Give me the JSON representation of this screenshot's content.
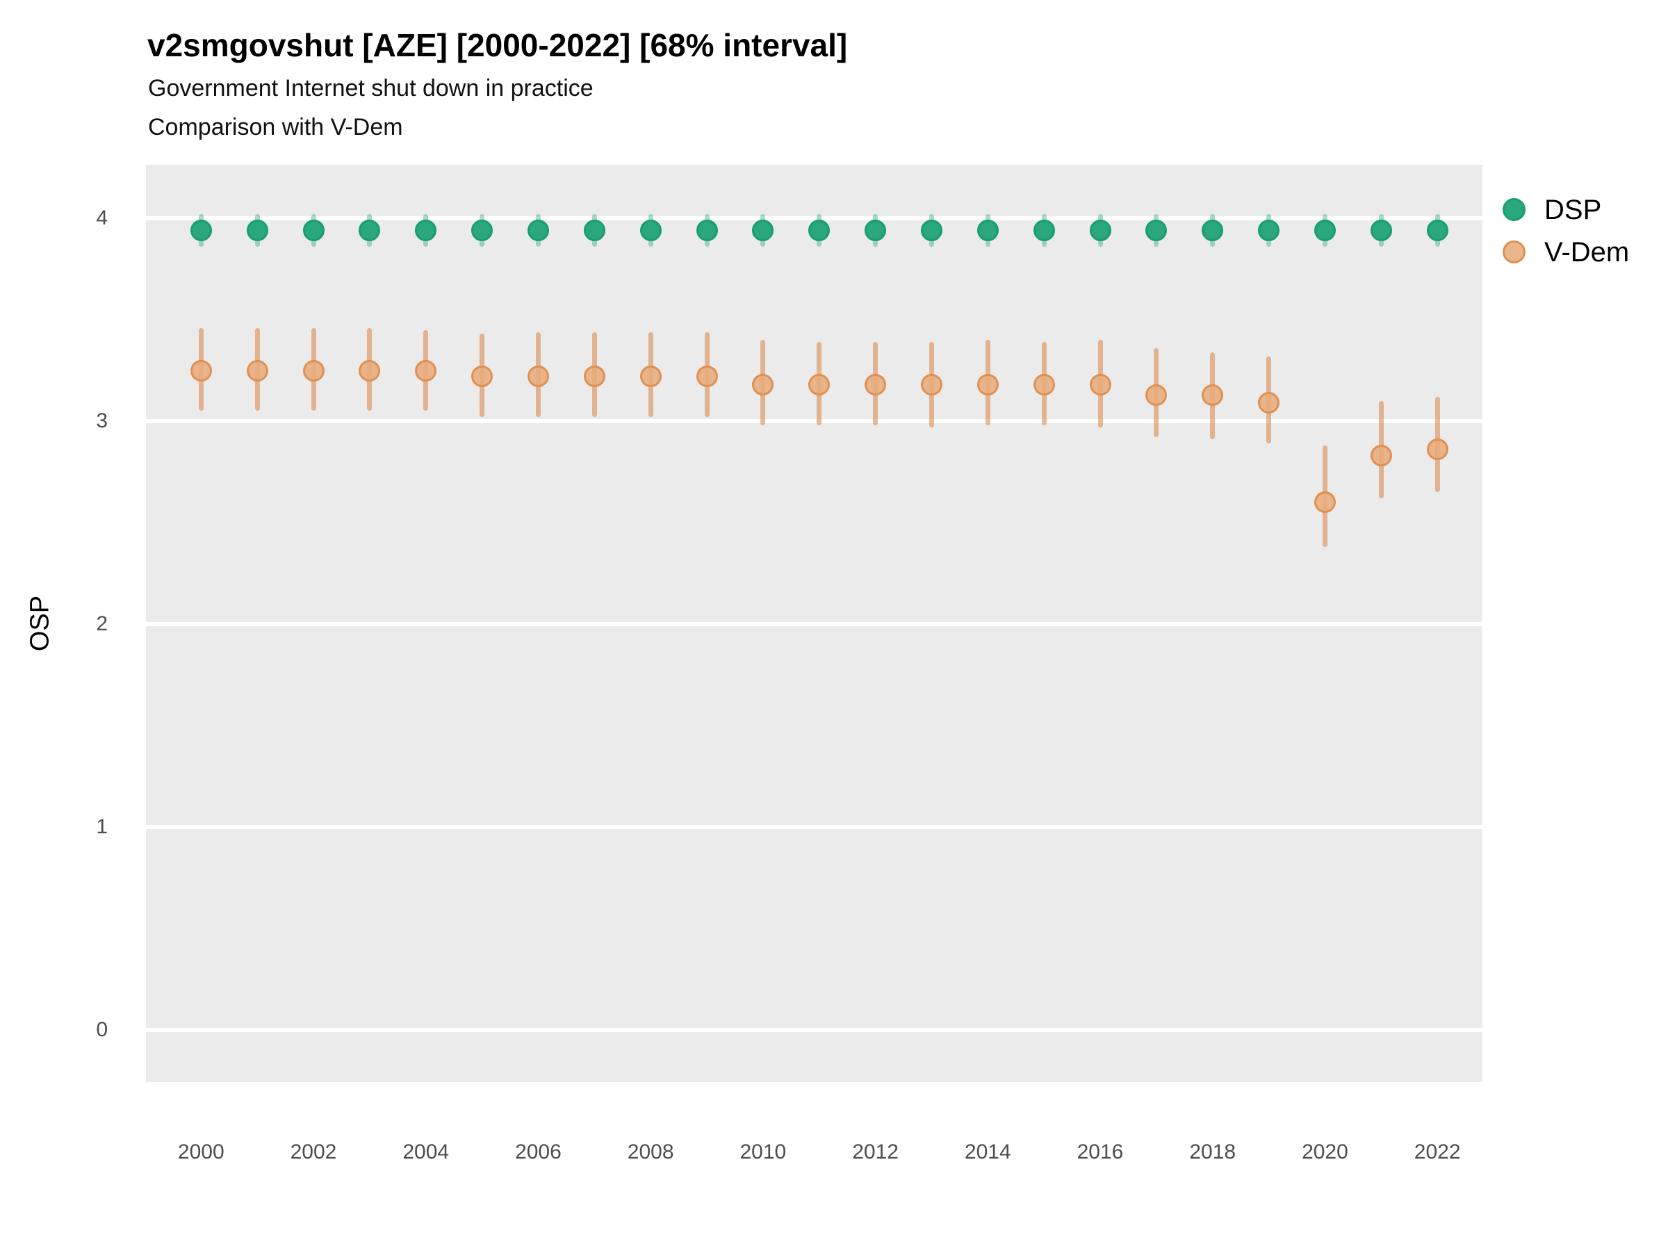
{
  "title": "v2smgovshut [AZE] [2000-2022] [68% interval]",
  "subtitle1": "Government Internet shut down in practice",
  "subtitle2": "Comparison with V-Dem",
  "y_axis": {
    "label": "OSP",
    "ticks": [
      4,
      3,
      2,
      1,
      0
    ]
  },
  "x_axis": {
    "ticks": [
      2000,
      2002,
      2004,
      2006,
      2008,
      2010,
      2012,
      2014,
      2016,
      2018,
      2020,
      2022
    ]
  },
  "legend": {
    "items": [
      {
        "label": "DSP"
      },
      {
        "label": "V-Dem"
      }
    ]
  },
  "colors": {
    "panel_bg": "#ebebeb",
    "gridline": "#ffffff",
    "axis_text": "#4d4d4d",
    "text": "#000000"
  },
  "chart_data": {
    "type": "scatter",
    "title": "v2smgovshut [AZE] [2000-2022] [68% interval]",
    "subtitle": "Government Internet shut down in practice — Comparison with V-Dem",
    "xlabel": "",
    "ylabel": "OSP",
    "interval": "68%",
    "ylim": [
      -0.26,
      4.26
    ],
    "xlim": [
      1999,
      2023
    ],
    "grid": "major-y-white-on-grey",
    "legend_position": "right",
    "x": [
      2000,
      2001,
      2002,
      2003,
      2004,
      2005,
      2006,
      2007,
      2008,
      2009,
      2010,
      2011,
      2012,
      2013,
      2014,
      2015,
      2016,
      2017,
      2018,
      2019,
      2020,
      2021,
      2022
    ],
    "series": [
      {
        "name": "DSP",
        "colors": {
          "fill": "#2aa77c",
          "stroke": "#189e6f",
          "bar": "rgba(47,169,122,0.42)"
        },
        "values": [
          3.94,
          3.94,
          3.94,
          3.94,
          3.94,
          3.94,
          3.94,
          3.94,
          3.94,
          3.94,
          3.94,
          3.94,
          3.94,
          3.94,
          3.94,
          3.94,
          3.94,
          3.94,
          3.94,
          3.94,
          3.94,
          3.94,
          3.94
        ],
        "lo": [
          3.86,
          3.86,
          3.86,
          3.86,
          3.86,
          3.86,
          3.86,
          3.86,
          3.86,
          3.86,
          3.86,
          3.86,
          3.86,
          3.86,
          3.86,
          3.86,
          3.86,
          3.86,
          3.86,
          3.86,
          3.86,
          3.86,
          3.86
        ],
        "hi": [
          4.02,
          4.02,
          4.02,
          4.02,
          4.02,
          4.02,
          4.02,
          4.02,
          4.02,
          4.02,
          4.02,
          4.02,
          4.02,
          4.02,
          4.02,
          4.02,
          4.02,
          4.02,
          4.02,
          4.02,
          4.02,
          4.02,
          4.02
        ]
      },
      {
        "name": "V-Dem",
        "colors": {
          "fill": "rgba(232,172,124,0.88)",
          "stroke": "rgba(222,142,81,0.95)",
          "bar": "rgba(217,132,63,0.55)"
        },
        "values": [
          3.25,
          3.25,
          3.25,
          3.25,
          3.25,
          3.22,
          3.22,
          3.22,
          3.22,
          3.22,
          3.18,
          3.18,
          3.18,
          3.18,
          3.18,
          3.18,
          3.18,
          3.13,
          3.13,
          3.09,
          2.6,
          2.83,
          2.86
        ],
        "lo": [
          3.05,
          3.05,
          3.05,
          3.05,
          3.05,
          3.02,
          3.02,
          3.02,
          3.02,
          3.02,
          2.98,
          2.98,
          2.98,
          2.97,
          2.98,
          2.98,
          2.97,
          2.92,
          2.91,
          2.89,
          2.38,
          2.62,
          2.65
        ],
        "hi": [
          3.46,
          3.46,
          3.46,
          3.46,
          3.45,
          3.43,
          3.44,
          3.44,
          3.44,
          3.44,
          3.4,
          3.39,
          3.39,
          3.39,
          3.4,
          3.39,
          3.4,
          3.36,
          3.34,
          3.32,
          2.88,
          3.1,
          3.12
        ]
      }
    ]
  }
}
